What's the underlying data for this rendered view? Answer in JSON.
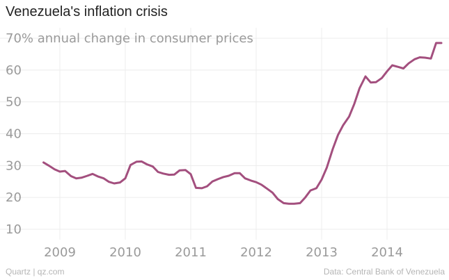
{
  "header": {
    "title": "Venezuela's inflation crisis"
  },
  "footer": {
    "source_left": "Quartz | qz.com",
    "source_right": "Data: Central Bank of Venezuela"
  },
  "colors": {
    "line": "#a34f7e",
    "grid": "#ececec",
    "text_muted": "#9a9a9a",
    "title": "#222222"
  },
  "chart_data": {
    "type": "line",
    "title": "Venezuela's inflation crisis",
    "ylabel": "annual change in consumer prices",
    "ytick_labels": [
      "70% annual change in consumer prices",
      "60",
      "50",
      "40",
      "30",
      "20",
      "10"
    ],
    "ytick_values": [
      70,
      60,
      50,
      40,
      30,
      20,
      10
    ],
    "xtick_labels": [
      "2009",
      "2010",
      "2011",
      "2012",
      "2013",
      "2014"
    ],
    "xtick_values": [
      2009,
      2010,
      2011,
      2012,
      2013,
      2014
    ],
    "xlim": [
      2008.6,
      2014.95
    ],
    "ylim": [
      5,
      72
    ],
    "grid": true,
    "series": [
      {
        "name": "Annual change in consumer prices (%)",
        "x": [
          2008.75,
          2008.83,
          2008.92,
          2009.0,
          2009.08,
          2009.17,
          2009.25,
          2009.33,
          2009.42,
          2009.5,
          2009.58,
          2009.67,
          2009.75,
          2009.83,
          2009.92,
          2010.0,
          2010.08,
          2010.17,
          2010.25,
          2010.33,
          2010.42,
          2010.5,
          2010.58,
          2010.67,
          2010.75,
          2010.83,
          2010.92,
          2011.0,
          2011.08,
          2011.17,
          2011.25,
          2011.33,
          2011.42,
          2011.5,
          2011.58,
          2011.67,
          2011.75,
          2011.83,
          2011.92,
          2012.0,
          2012.08,
          2012.17,
          2012.25,
          2012.33,
          2012.42,
          2012.5,
          2012.58,
          2012.67,
          2012.75,
          2012.83,
          2012.92,
          2013.0,
          2013.08,
          2013.17,
          2013.25,
          2013.33,
          2013.42,
          2013.5,
          2013.58,
          2013.67,
          2013.75,
          2013.83,
          2013.92,
          2014.0,
          2014.08,
          2014.17,
          2014.25,
          2014.33,
          2014.42,
          2014.5,
          2014.58,
          2014.67,
          2014.75,
          2014.83
        ],
        "values": [
          31.0,
          30.0,
          28.8,
          28.1,
          28.3,
          26.7,
          26.0,
          26.2,
          26.8,
          27.4,
          26.6,
          26.0,
          24.9,
          24.4,
          24.7,
          26.0,
          30.2,
          31.2,
          31.3,
          30.4,
          29.7,
          28.0,
          27.5,
          27.1,
          27.2,
          28.5,
          28.6,
          27.3,
          23.0,
          22.9,
          23.5,
          25.0,
          25.8,
          26.4,
          26.8,
          27.6,
          27.6,
          26.0,
          25.3,
          24.8,
          24.0,
          22.7,
          21.5,
          19.5,
          18.2,
          18.0,
          18.0,
          18.2,
          20.0,
          22.2,
          22.9,
          25.6,
          29.4,
          35.2,
          39.6,
          42.7,
          45.4,
          49.4,
          54.3,
          58.0,
          56.1,
          56.2,
          57.5,
          59.6,
          61.5,
          61.0,
          60.5,
          62.1,
          63.4,
          64.0,
          63.9,
          63.6,
          68.5,
          68.5
        ]
      }
    ]
  }
}
